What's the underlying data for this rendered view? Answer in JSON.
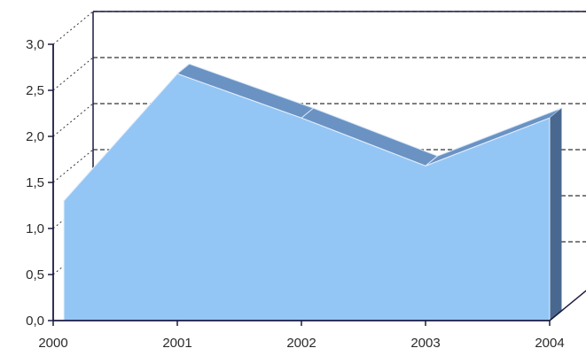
{
  "chart_data": {
    "type": "area",
    "title": "",
    "xlabel": "",
    "ylabel": "",
    "x": [
      "2000",
      "2001",
      "2002",
      "2003",
      "2004"
    ],
    "series": [
      {
        "values": [
          1.3,
          2.68,
          2.2,
          1.68,
          2.2
        ]
      }
    ],
    "ylim": [
      0,
      3
    ],
    "yticks": [
      "0,0",
      "0,5",
      "1,0",
      "1,5",
      "2,0",
      "2,5",
      "3,0"
    ],
    "grid": "horizontal, dashed",
    "three_d": true,
    "colors": {
      "area_front": "#94c6f5",
      "area_top": "#6a93c4",
      "area_side": "#49688f",
      "axis": "#1a1a40",
      "grid": "#333333"
    }
  }
}
